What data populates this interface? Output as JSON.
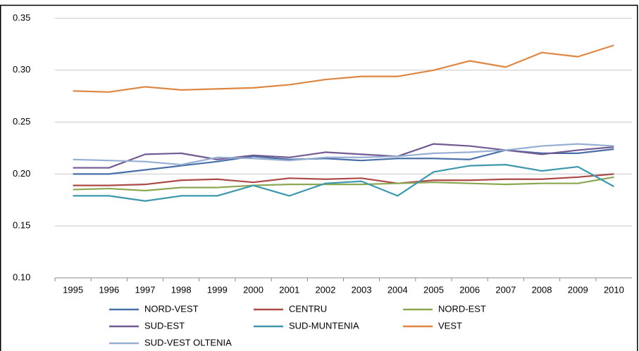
{
  "chart_data": {
    "type": "line",
    "categories": [
      "1995",
      "1996",
      "1997",
      "1998",
      "1999",
      "2000",
      "2001",
      "2002",
      "2003",
      "2004",
      "2005",
      "2006",
      "2007",
      "2008",
      "2009",
      "2010"
    ],
    "ylim": [
      0.1,
      0.35
    ],
    "yticks": [
      {
        "value": 0.1,
        "label": "0.10"
      },
      0.15,
      {
        "value": 0.2,
        "label": "0.20"
      },
      0.25,
      {
        "value": 0.3,
        "label": "0.30"
      },
      0.35
    ],
    "grid": true,
    "legend": "bottom",
    "series": [
      {
        "name": "NORD-VEST",
        "color": "#4a70a8",
        "values": [
          0.2,
          0.2,
          0.204,
          0.208,
          0.212,
          0.217,
          0.214,
          0.215,
          0.213,
          0.215,
          0.215,
          0.214,
          0.223,
          0.22,
          0.22,
          0.224
        ]
      },
      {
        "name": "CENTRU",
        "color": "#ac4a47",
        "values": [
          0.189,
          0.189,
          0.19,
          0.194,
          0.195,
          0.192,
          0.196,
          0.195,
          0.196,
          0.191,
          0.194,
          0.194,
          0.195,
          0.195,
          0.197,
          0.2
        ]
      },
      {
        "name": "NORD-EST",
        "color": "#8ba752",
        "values": [
          0.185,
          0.186,
          0.184,
          0.187,
          0.187,
          0.189,
          0.19,
          0.19,
          0.19,
          0.191,
          0.192,
          0.191,
          0.19,
          0.191,
          0.191,
          0.197
        ]
      },
      {
        "name": "SUD-EST",
        "color": "#725a92",
        "values": [
          0.206,
          0.206,
          0.219,
          0.22,
          0.214,
          0.218,
          0.216,
          0.221,
          0.219,
          0.217,
          0.229,
          0.227,
          0.223,
          0.219,
          0.223,
          0.226
        ]
      },
      {
        "name": "SUD-MUNTENIA",
        "color": "#3e97ab",
        "values": [
          0.179,
          0.179,
          0.174,
          0.179,
          0.179,
          0.189,
          0.179,
          0.191,
          0.193,
          0.179,
          0.202,
          0.208,
          0.209,
          0.203,
          0.207,
          0.188
        ]
      },
      {
        "name": "VEST",
        "color": "#dd8642",
        "values": [
          0.28,
          0.279,
          0.284,
          0.281,
          0.282,
          0.283,
          0.286,
          0.291,
          0.294,
          0.294,
          0.3,
          0.309,
          0.303,
          0.317,
          0.313,
          0.324
        ]
      },
      {
        "name": "SUD-VEST OLTENIA",
        "color": "#97aed3",
        "values": [
          0.214,
          0.213,
          0.212,
          0.209,
          0.216,
          0.215,
          0.213,
          0.216,
          0.216,
          0.217,
          0.22,
          0.221,
          0.223,
          0.227,
          0.229,
          0.227
        ]
      }
    ]
  }
}
